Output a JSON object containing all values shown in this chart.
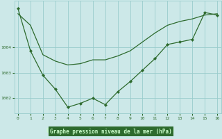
{
  "line1_x": [
    0,
    1,
    2,
    3,
    4,
    5,
    6,
    7,
    8,
    9,
    10,
    11,
    12,
    13,
    14,
    15,
    16
  ],
  "line1_y": [
    1005.3,
    1004.85,
    1003.7,
    1003.45,
    1003.3,
    1003.35,
    1003.5,
    1003.5,
    1003.65,
    1003.85,
    1004.2,
    1004.55,
    1004.85,
    1005.0,
    1005.1,
    1005.25,
    1005.3
  ],
  "line2_x": [
    0,
    1,
    2,
    3,
    4,
    5,
    6,
    7,
    8,
    9,
    10,
    11,
    12,
    13,
    14,
    15,
    16
  ],
  "line2_y": [
    1005.5,
    1003.85,
    1002.9,
    1002.35,
    1001.65,
    1001.8,
    1002.0,
    1001.75,
    1002.25,
    1002.65,
    1003.1,
    1003.55,
    1004.1,
    1004.2,
    1004.3,
    1005.35,
    1005.25
  ],
  "line_color": "#2d6a2d",
  "bg_color": "#cce8e8",
  "grid_color": "#99cccc",
  "xlabel": "Graphe pression niveau de la mer (hPa)",
  "xlabel_bg": "#2d6a2d",
  "xlabel_text_color": "#ccffcc",
  "ylim_min": 1001.4,
  "ylim_max": 1005.8,
  "xlim_min": -0.3,
  "xlim_max": 16.3
}
